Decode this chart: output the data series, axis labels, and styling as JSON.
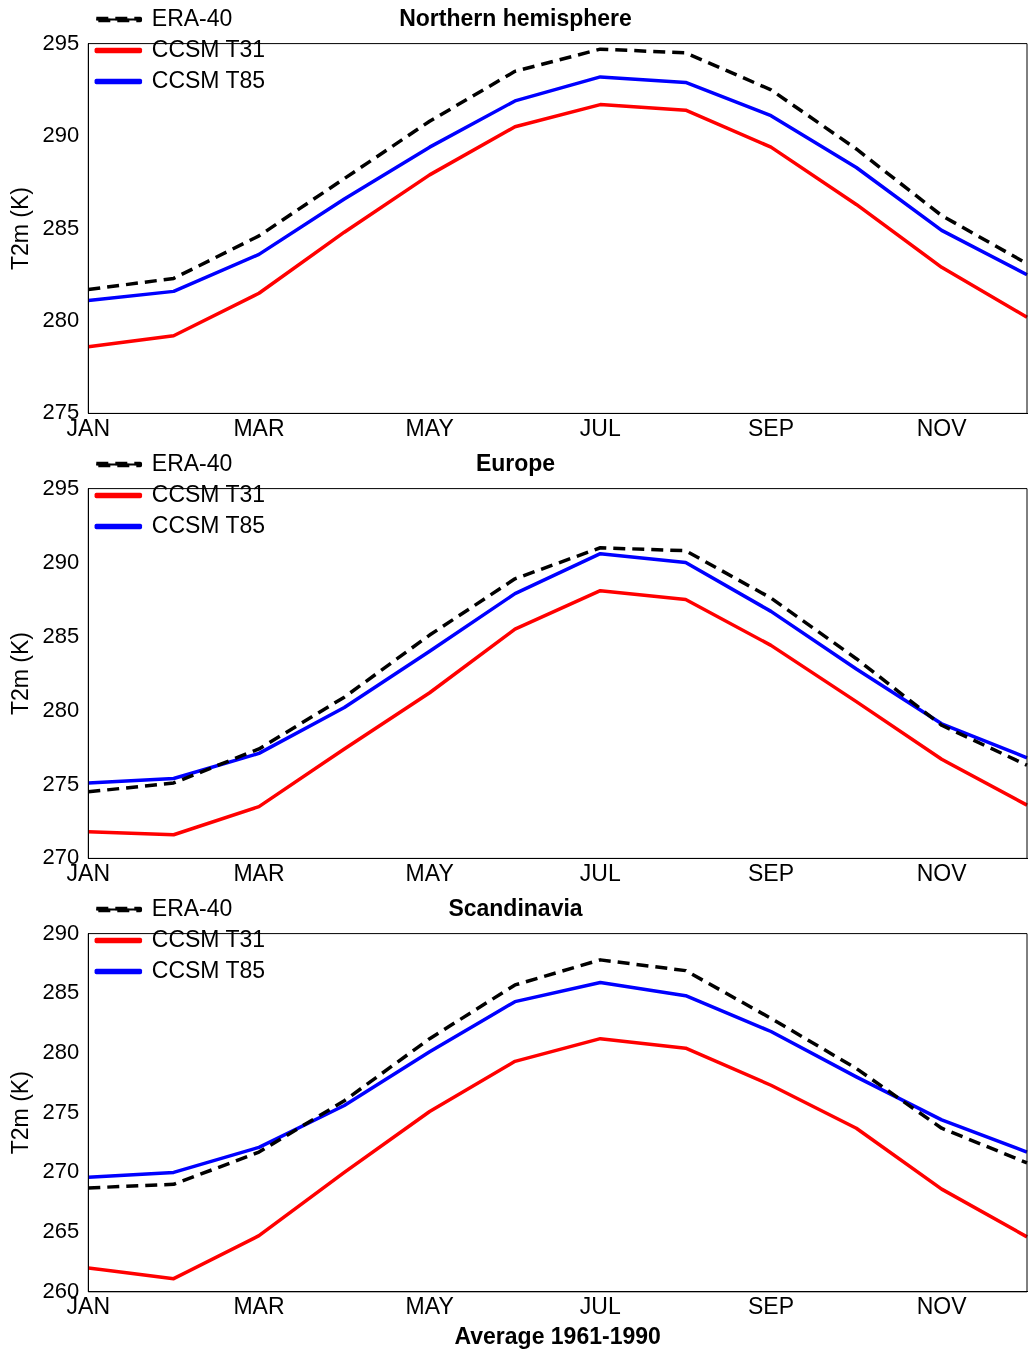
{
  "chart_data": [
    {
      "type": "line",
      "title": "Northern hemisphere",
      "ylabel": "T2m (K)",
      "categories": [
        "JAN",
        null,
        "MAR",
        null,
        "MAY",
        null,
        "JUL",
        null,
        "SEP",
        null,
        "NOV",
        null
      ],
      "ylim": [
        275,
        295
      ],
      "yticks": [
        275,
        280,
        285,
        290,
        295
      ],
      "legend": "top left",
      "marker": "none",
      "series": [
        {
          "name": "ERA-40",
          "color": "#000000",
          "line_style": "dashed",
          "values": [
            281.7,
            282.3,
            284.6,
            287.7,
            290.8,
            293.5,
            294.7,
            294.5,
            292.5,
            289.3,
            285.7,
            283.1
          ]
        },
        {
          "name": "CCSM T31",
          "color": "#ff0000",
          "line_style": "solid",
          "values": [
            278.6,
            279.2,
            281.5,
            284.8,
            287.9,
            290.5,
            291.7,
            291.4,
            289.4,
            286.3,
            282.9,
            280.2
          ]
        },
        {
          "name": "CCSM T85",
          "color": "#0000ff",
          "line_style": "solid",
          "values": [
            281.1,
            281.6,
            283.6,
            286.6,
            289.4,
            291.9,
            293.2,
            292.9,
            291.1,
            288.3,
            284.9,
            282.5
          ]
        }
      ]
    },
    {
      "type": "line",
      "title": "Europe",
      "ylabel": "T2m (K)",
      "categories": [
        "JAN",
        null,
        "MAR",
        null,
        "MAY",
        null,
        "JUL",
        null,
        "SEP",
        null,
        "NOV",
        null
      ],
      "ylim": [
        270,
        295
      ],
      "yticks": [
        270,
        275,
        280,
        285,
        290,
        295
      ],
      "legend": "top left",
      "marker": "none",
      "series": [
        {
          "name": "ERA-40",
          "color": "#000000",
          "line_style": "dashed",
          "values": [
            274.5,
            275.1,
            277.4,
            280.9,
            285.1,
            288.9,
            291.0,
            290.8,
            287.6,
            283.5,
            279.0,
            276.3
          ]
        },
        {
          "name": "CCSM T31",
          "color": "#ff0000",
          "line_style": "solid",
          "values": [
            271.8,
            271.6,
            273.5,
            277.4,
            281.2,
            285.5,
            288.1,
            287.5,
            284.4,
            280.6,
            276.7,
            273.6
          ]
        },
        {
          "name": "CCSM T85",
          "color": "#0000ff",
          "line_style": "solid",
          "values": [
            275.1,
            275.4,
            277.1,
            280.2,
            284.0,
            287.9,
            290.6,
            290.0,
            286.7,
            282.8,
            279.1,
            276.8
          ]
        }
      ]
    },
    {
      "type": "line",
      "title": "Scandinavia",
      "ylabel": "T2m (K)",
      "xlabel": "Average 1961-1990",
      "categories": [
        "JAN",
        null,
        "MAR",
        null,
        "MAY",
        null,
        "JUL",
        null,
        "SEP",
        null,
        "NOV",
        null
      ],
      "ylim": [
        260,
        290
      ],
      "yticks": [
        260,
        265,
        270,
        275,
        280,
        285,
        290
      ],
      "legend": "top left",
      "marker": "none",
      "series": [
        {
          "name": "ERA-40",
          "color": "#000000",
          "line_style": "dashed",
          "values": [
            268.7,
            269.0,
            271.7,
            276.0,
            281.2,
            285.7,
            287.8,
            286.9,
            282.9,
            278.7,
            273.7,
            270.8
          ]
        },
        {
          "name": "CCSM T31",
          "color": "#ff0000",
          "line_style": "solid",
          "values": [
            262.0,
            261.1,
            264.7,
            270.0,
            275.1,
            279.3,
            281.2,
            280.4,
            277.3,
            273.7,
            268.6,
            264.6
          ]
        },
        {
          "name": "CCSM T85",
          "color": "#0000ff",
          "line_style": "solid",
          "values": [
            269.6,
            270.0,
            272.1,
            275.6,
            280.1,
            284.3,
            285.9,
            284.8,
            281.8,
            278.0,
            274.4,
            271.7
          ]
        }
      ]
    }
  ]
}
